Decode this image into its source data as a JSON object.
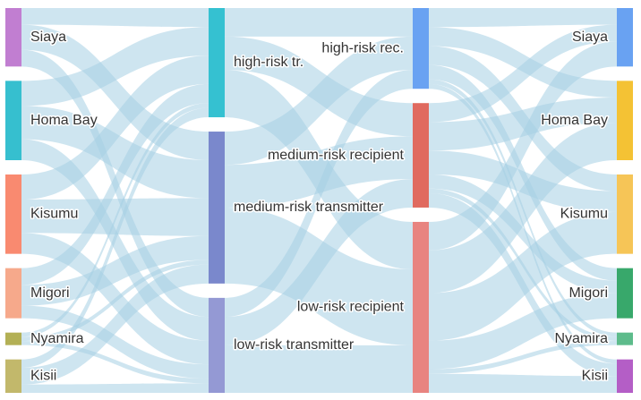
{
  "chart_data": {
    "type": "sankey",
    "columns": [
      {
        "id": "source",
        "nodes": [
          {
            "id": "s_siaya",
            "label": "Siaya",
            "value": 14,
            "color": "#c17ed1"
          },
          {
            "id": "s_homabay",
            "label": "Homa Bay",
            "value": 19,
            "color": "#36bfcf"
          },
          {
            "id": "s_kisumu",
            "label": "Kisumu",
            "value": 19,
            "color": "#f98a70"
          },
          {
            "id": "s_migori",
            "label": "Migori",
            "value": 12,
            "color": "#f6a98b"
          },
          {
            "id": "s_nyamira",
            "label": "Nyamira",
            "value": 3,
            "color": "#b3b055"
          },
          {
            "id": "s_kisii",
            "label": "Kisii",
            "value": 8,
            "color": "#c2b86b"
          }
        ]
      },
      {
        "id": "transmitter",
        "nodes": [
          {
            "id": "t_high",
            "label": "high-risk tr.",
            "value": 23,
            "color": "#35c1d1"
          },
          {
            "id": "t_medium",
            "label": "medium-risk transmitter",
            "value": 32,
            "color": "#7a88cc"
          },
          {
            "id": "t_low",
            "label": "low-risk transmitter",
            "value": 20,
            "color": "#9499d4"
          }
        ]
      },
      {
        "id": "recipient",
        "nodes": [
          {
            "id": "r_high",
            "label": "high-risk rec.",
            "value": 17,
            "color": "#69a2f2"
          },
          {
            "id": "r_medium",
            "label": "medium-risk recipient",
            "value": 22,
            "color": "#e06a5f"
          },
          {
            "id": "r_low",
            "label": "low-risk recipient",
            "value": 36,
            "color": "#e88480"
          }
        ]
      },
      {
        "id": "destination",
        "nodes": [
          {
            "id": "d_siaya",
            "label": "Siaya",
            "value": 14,
            "color": "#69a2f2"
          },
          {
            "id": "d_homabay",
            "label": "Homa Bay",
            "value": 19,
            "color": "#f4c234"
          },
          {
            "id": "d_kisumu",
            "label": "Kisumu",
            "value": 19,
            "color": "#f6c557"
          },
          {
            "id": "d_migori",
            "label": "Migori",
            "value": 12,
            "color": "#38a86b"
          },
          {
            "id": "d_nyamira",
            "label": "Nyamira",
            "value": 3,
            "color": "#5dbb8b"
          },
          {
            "id": "d_kisii",
            "label": "Kisii",
            "value": 8,
            "color": "#b45ec6"
          }
        ]
      }
    ],
    "links": [
      {
        "source": "s_siaya",
        "target": "t_high",
        "value": 4
      },
      {
        "source": "s_siaya",
        "target": "t_medium",
        "value": 6
      },
      {
        "source": "s_siaya",
        "target": "t_low",
        "value": 4
      },
      {
        "source": "s_homabay",
        "target": "t_high",
        "value": 6
      },
      {
        "source": "s_homabay",
        "target": "t_medium",
        "value": 8
      },
      {
        "source": "s_homabay",
        "target": "t_low",
        "value": 5
      },
      {
        "source": "s_kisumu",
        "target": "t_high",
        "value": 6
      },
      {
        "source": "s_kisumu",
        "target": "t_medium",
        "value": 8
      },
      {
        "source": "s_kisumu",
        "target": "t_low",
        "value": 5
      },
      {
        "source": "s_migori",
        "target": "t_high",
        "value": 4
      },
      {
        "source": "s_migori",
        "target": "t_medium",
        "value": 5
      },
      {
        "source": "s_migori",
        "target": "t_low",
        "value": 3
      },
      {
        "source": "s_nyamira",
        "target": "t_high",
        "value": 1
      },
      {
        "source": "s_nyamira",
        "target": "t_medium",
        "value": 1
      },
      {
        "source": "s_nyamira",
        "target": "t_low",
        "value": 1
      },
      {
        "source": "s_kisii",
        "target": "t_high",
        "value": 2
      },
      {
        "source": "s_kisii",
        "target": "t_medium",
        "value": 4
      },
      {
        "source": "s_kisii",
        "target": "t_low",
        "value": 2
      },
      {
        "source": "t_high",
        "target": "r_high",
        "value": 6
      },
      {
        "source": "t_high",
        "target": "r_medium",
        "value": 7
      },
      {
        "source": "t_high",
        "target": "r_low",
        "value": 10
      },
      {
        "source": "t_medium",
        "target": "r_high",
        "value": 7
      },
      {
        "source": "t_medium",
        "target": "r_medium",
        "value": 9
      },
      {
        "source": "t_medium",
        "target": "r_low",
        "value": 16
      },
      {
        "source": "t_low",
        "target": "r_high",
        "value": 4
      },
      {
        "source": "t_low",
        "target": "r_medium",
        "value": 6
      },
      {
        "source": "t_low",
        "target": "r_low",
        "value": 10
      },
      {
        "source": "r_high",
        "target": "d_siaya",
        "value": 4
      },
      {
        "source": "r_high",
        "target": "d_homabay",
        "value": 4
      },
      {
        "source": "r_high",
        "target": "d_kisumu",
        "value": 4
      },
      {
        "source": "r_high",
        "target": "d_migori",
        "value": 3
      },
      {
        "source": "r_high",
        "target": "d_nyamira",
        "value": 1
      },
      {
        "source": "r_high",
        "target": "d_kisii",
        "value": 1
      },
      {
        "source": "r_medium",
        "target": "d_siaya",
        "value": 4
      },
      {
        "source": "r_medium",
        "target": "d_homabay",
        "value": 6
      },
      {
        "source": "r_medium",
        "target": "d_kisumu",
        "value": 5
      },
      {
        "source": "r_medium",
        "target": "d_migori",
        "value": 3
      },
      {
        "source": "r_medium",
        "target": "d_nyamira",
        "value": 1
      },
      {
        "source": "r_medium",
        "target": "d_kisii",
        "value": 3
      },
      {
        "source": "r_low",
        "target": "d_siaya",
        "value": 6
      },
      {
        "source": "r_low",
        "target": "d_homabay",
        "value": 9
      },
      {
        "source": "r_low",
        "target": "d_kisumu",
        "value": 10
      },
      {
        "source": "r_low",
        "target": "d_migori",
        "value": 6
      },
      {
        "source": "r_low",
        "target": "d_nyamira",
        "value": 1
      },
      {
        "source": "r_low",
        "target": "d_kisii",
        "value": 4
      }
    ],
    "link_color": "#a6d0e4"
  }
}
